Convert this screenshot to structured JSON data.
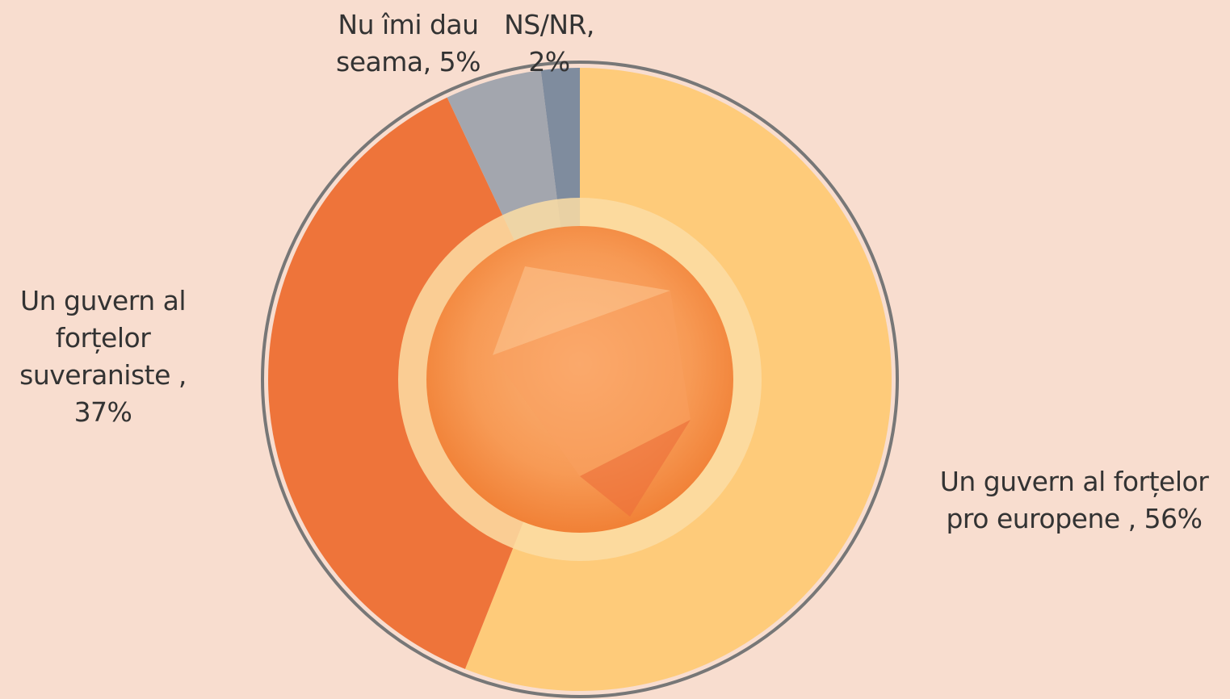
{
  "chart_data": {
    "type": "donut",
    "categories": [
      "Un guvern al forțelor pro europene ,",
      "Un guvern al forțelor suveraniste ,",
      "Nu îmi dau seama,",
      "NS/NR,"
    ],
    "values": [
      56,
      37,
      5,
      2
    ],
    "value_labels": [
      "56%",
      "37%",
      "5%",
      "2%"
    ],
    "colors": [
      "#FECB7A",
      "#EE743A",
      "#A3A6AE",
      "#7F8C9E"
    ]
  }
}
